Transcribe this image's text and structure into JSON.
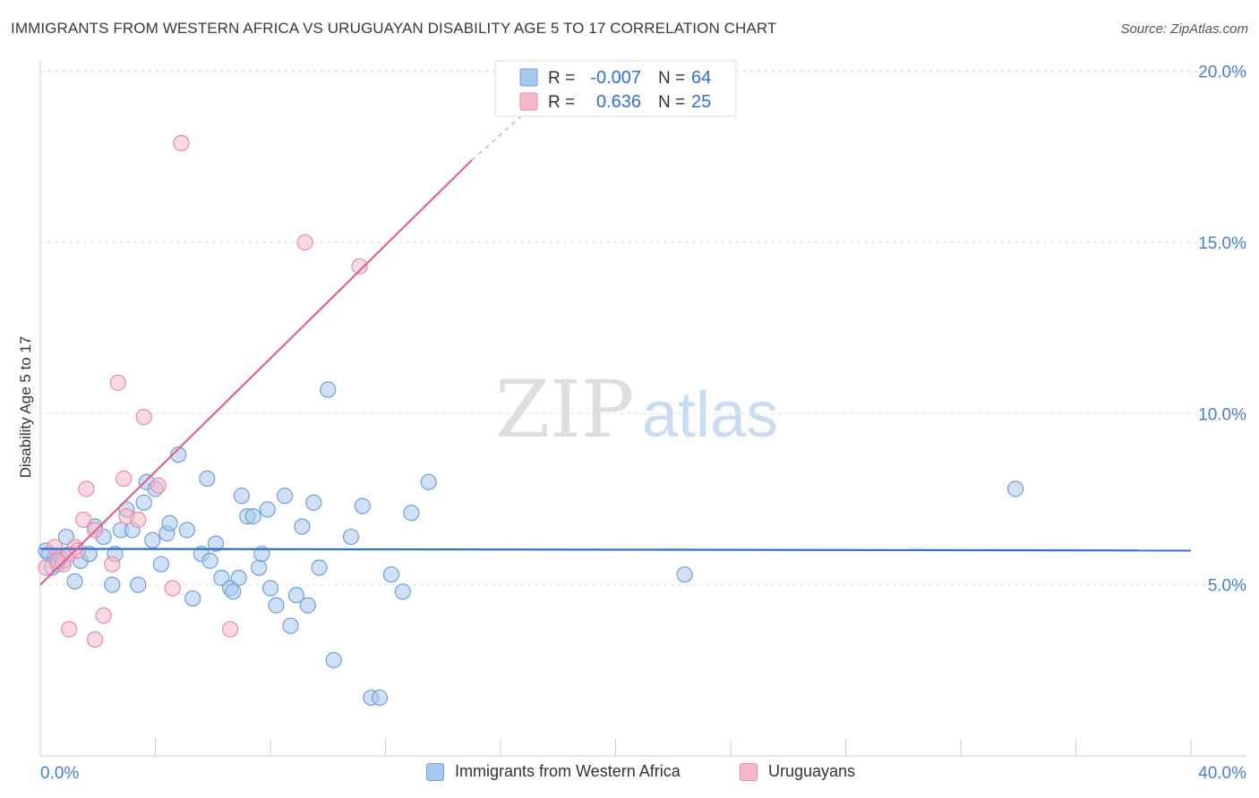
{
  "header": {
    "title": "IMMIGRANTS FROM WESTERN AFRICA VS URUGUAYAN DISABILITY AGE 5 TO 17 CORRELATION CHART",
    "source": "Source: ZipAtlas.com"
  },
  "watermark": {
    "zip": "ZIP",
    "atlas": "atlas"
  },
  "colors": {
    "blue_fill": "#a9c8f0",
    "blue_stroke": "#6f9fd8",
    "blue_line": "#2f6fcf",
    "pink_fill": "#f6b9cb",
    "pink_stroke": "#e98aa8",
    "pink_line": "#e0648e",
    "tick_label": "#4a7fcf",
    "grid": "#dddddd"
  },
  "stats_legend": {
    "rows": [
      {
        "r_label": "R =",
        "r_value": "-0.007",
        "n_label": "N =",
        "n_value": "64"
      },
      {
        "r_label": "R =",
        "r_value": "0.636",
        "n_label": "N =",
        "n_value": "25"
      }
    ]
  },
  "chart_data": {
    "type": "scatter",
    "title": "IMMIGRANTS FROM WESTERN AFRICA VS URUGUAYAN DISABILITY AGE 5 TO 17 CORRELATION CHART",
    "xlabel": "",
    "ylabel": "Disability Age 5 to 17",
    "xlim": [
      0,
      40
    ],
    "ylim": [
      0,
      20.5
    ],
    "x_tick_labels": [
      "0.0%",
      "40.0%"
    ],
    "y_ticks": [
      5,
      10,
      15,
      20
    ],
    "y_tick_labels": [
      "5.0%",
      "10.0%",
      "15.0%",
      "20.0%"
    ],
    "grid": true,
    "legend_position": "bottom",
    "series": [
      {
        "name": "Immigrants from Western Africa",
        "color": "#a9c8f0",
        "r": -0.007,
        "n": 64,
        "trend": {
          "x0": 0,
          "y0": 6.05,
          "x1": 40,
          "y1": 6.0
        },
        "points": [
          [
            0.3,
            5.9
          ],
          [
            0.5,
            5.8
          ],
          [
            0.6,
            5.6
          ],
          [
            0.8,
            5.7
          ],
          [
            0.9,
            6.4
          ],
          [
            1.2,
            5.1
          ],
          [
            1.4,
            5.7
          ],
          [
            1.7,
            5.9
          ],
          [
            1.9,
            6.7
          ],
          [
            2.2,
            6.4
          ],
          [
            2.5,
            5.0
          ],
          [
            2.6,
            5.9
          ],
          [
            2.8,
            6.6
          ],
          [
            3.0,
            7.2
          ],
          [
            3.2,
            6.6
          ],
          [
            3.4,
            5.0
          ],
          [
            3.6,
            7.4
          ],
          [
            3.7,
            8.0
          ],
          [
            3.9,
            6.3
          ],
          [
            4.0,
            7.8
          ],
          [
            4.2,
            5.6
          ],
          [
            4.4,
            6.5
          ],
          [
            4.5,
            6.8
          ],
          [
            4.8,
            8.8
          ],
          [
            5.1,
            6.6
          ],
          [
            5.3,
            4.6
          ],
          [
            5.6,
            5.9
          ],
          [
            5.8,
            8.1
          ],
          [
            5.9,
            5.7
          ],
          [
            6.1,
            6.2
          ],
          [
            6.3,
            5.2
          ],
          [
            6.6,
            4.9
          ],
          [
            6.7,
            4.8
          ],
          [
            6.9,
            5.2
          ],
          [
            7.0,
            7.6
          ],
          [
            7.2,
            7.0
          ],
          [
            7.4,
            7.0
          ],
          [
            7.6,
            5.5
          ],
          [
            7.7,
            5.9
          ],
          [
            7.9,
            7.2
          ],
          [
            8.0,
            4.9
          ],
          [
            8.2,
            4.4
          ],
          [
            8.5,
            7.6
          ],
          [
            8.7,
            3.8
          ],
          [
            8.9,
            4.7
          ],
          [
            9.1,
            6.7
          ],
          [
            9.3,
            4.4
          ],
          [
            9.5,
            7.4
          ],
          [
            9.7,
            5.5
          ],
          [
            10.0,
            10.7
          ],
          [
            10.2,
            2.8
          ],
          [
            10.8,
            6.4
          ],
          [
            11.2,
            7.3
          ],
          [
            11.5,
            1.7
          ],
          [
            11.8,
            1.7
          ],
          [
            12.2,
            5.3
          ],
          [
            12.6,
            4.8
          ],
          [
            12.9,
            7.1
          ],
          [
            13.5,
            8.0
          ],
          [
            22.4,
            5.3
          ],
          [
            33.9,
            7.8
          ],
          [
            0.2,
            6.0
          ],
          [
            0.4,
            5.5
          ],
          [
            0.7,
            5.8
          ]
        ]
      },
      {
        "name": "Uruguayans",
        "color": "#f6b9cb",
        "r": 0.636,
        "n": 25,
        "trend": {
          "x0": 0,
          "y0": 5.0,
          "x1": 15.0,
          "y1": 17.4,
          "dash_x1": 17.8,
          "dash_y1": 19.5
        },
        "points": [
          [
            0.2,
            5.5
          ],
          [
            0.5,
            6.1
          ],
          [
            0.8,
            5.6
          ],
          [
            1.0,
            5.9
          ],
          [
            1.2,
            6.1
          ],
          [
            1.6,
            7.8
          ],
          [
            1.5,
            6.9
          ],
          [
            1.9,
            6.6
          ],
          [
            2.2,
            4.1
          ],
          [
            2.5,
            5.6
          ],
          [
            2.7,
            10.9
          ],
          [
            2.9,
            8.1
          ],
          [
            3.0,
            7.0
          ],
          [
            3.4,
            6.9
          ],
          [
            3.6,
            9.9
          ],
          [
            4.1,
            7.9
          ],
          [
            4.6,
            4.9
          ],
          [
            4.9,
            17.9
          ],
          [
            6.6,
            3.7
          ],
          [
            9.2,
            15.0
          ],
          [
            11.1,
            14.3
          ],
          [
            1.0,
            3.7
          ],
          [
            1.9,
            3.4
          ],
          [
            0.6,
            5.7
          ],
          [
            1.3,
            6.0
          ]
        ]
      }
    ]
  }
}
